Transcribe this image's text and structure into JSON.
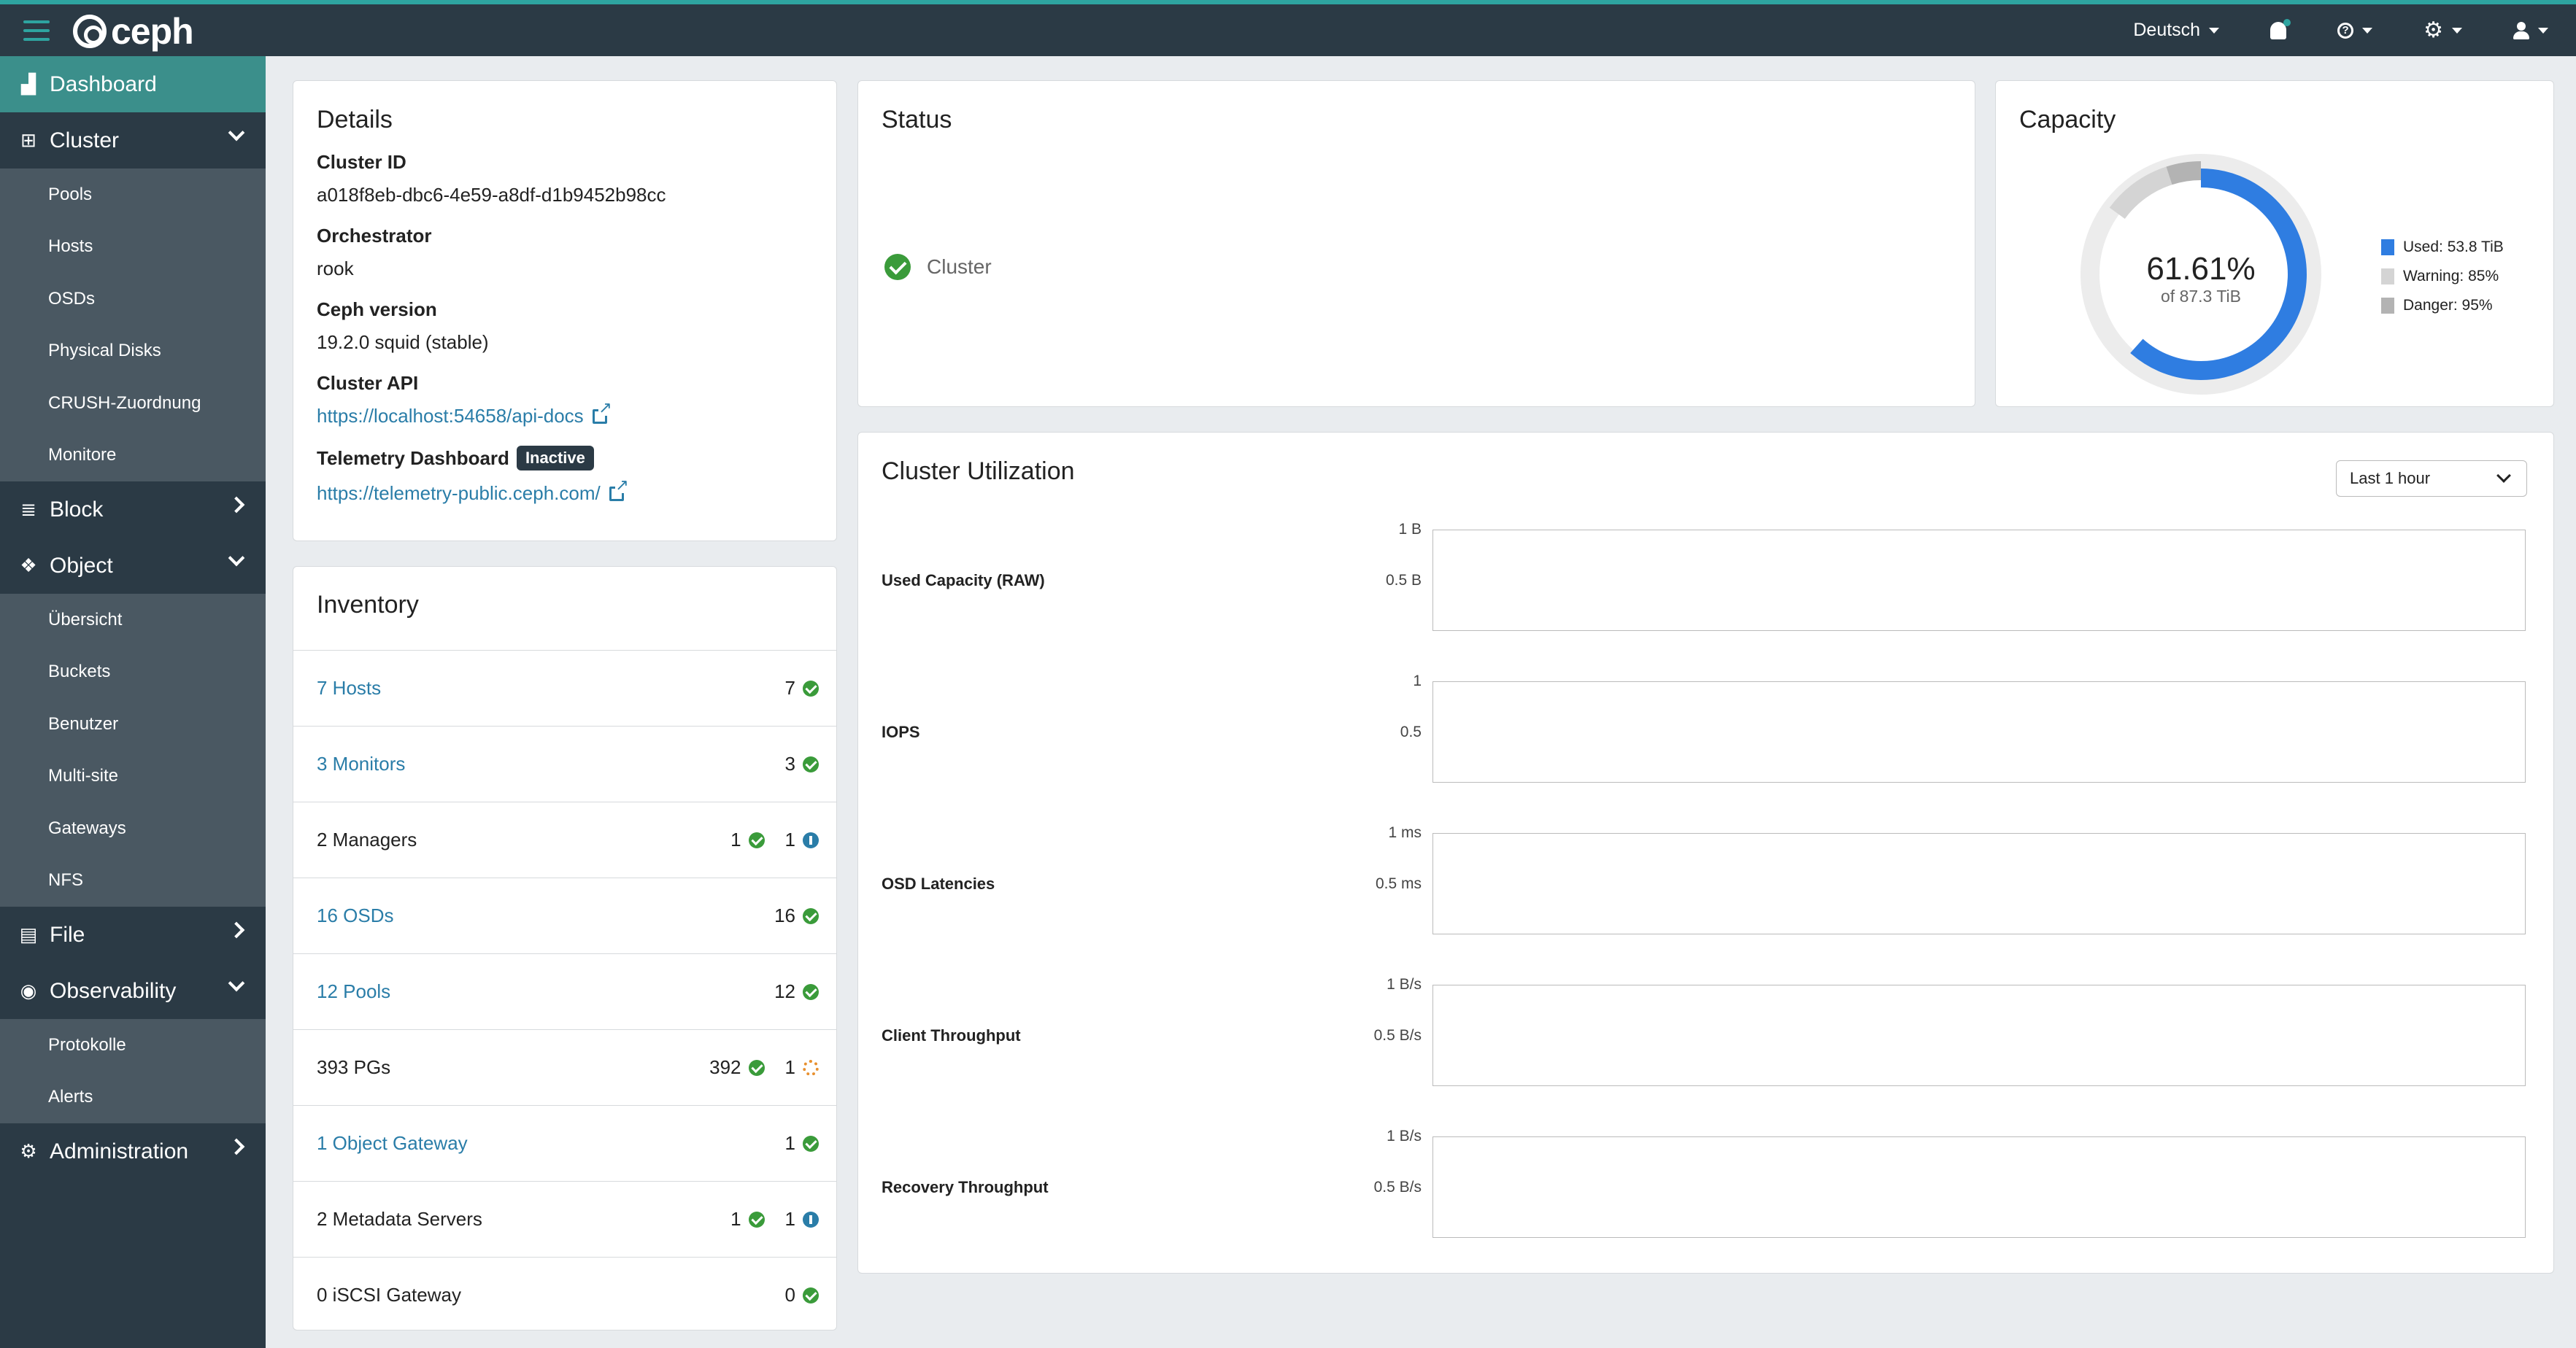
{
  "topbar": {
    "app_name": "ceph",
    "language": "Deutsch"
  },
  "sidebar": {
    "dashboard": "Dashboard",
    "cluster": "Cluster",
    "cluster_items": [
      "Pools",
      "Hosts",
      "OSDs",
      "Physical Disks",
      "CRUSH-Zuordnung",
      "Monitore"
    ],
    "block": "Block",
    "object": "Object",
    "object_items": [
      "Übersicht",
      "Buckets",
      "Benutzer",
      "Multi-site",
      "Gateways",
      "NFS"
    ],
    "file": "File",
    "observability": "Observability",
    "observability_items": [
      "Protokolle",
      "Alerts"
    ],
    "administration": "Administration"
  },
  "details": {
    "title": "Details",
    "cluster_id_label": "Cluster ID",
    "cluster_id": "a018f8eb-dbc6-4e59-a8df-d1b9452b98cc",
    "orchestrator_label": "Orchestrator",
    "orchestrator": "rook",
    "ceph_version_label": "Ceph version",
    "ceph_version": "19.2.0 squid (stable)",
    "cluster_api_label": "Cluster API",
    "cluster_api_url": "https://localhost:54658/api-docs",
    "telemetry_label": "Telemetry Dashboard",
    "telemetry_badge": "Inactive",
    "telemetry_url": "https://telemetry-public.ceph.com/"
  },
  "inventory": {
    "title": "Inventory",
    "rows": [
      {
        "label": "7 Hosts",
        "link": true,
        "counts": [
          "7"
        ],
        "states": [
          "ok"
        ]
      },
      {
        "label": "3 Monitors",
        "link": true,
        "counts": [
          "3"
        ],
        "states": [
          "ok"
        ]
      },
      {
        "label": "2 Managers",
        "link": false,
        "counts": [
          "1",
          "1"
        ],
        "states": [
          "ok",
          "info"
        ]
      },
      {
        "label": "16 OSDs",
        "link": true,
        "counts": [
          "16"
        ],
        "states": [
          "ok"
        ]
      },
      {
        "label": "12 Pools",
        "link": true,
        "counts": [
          "12"
        ],
        "states": [
          "ok"
        ]
      },
      {
        "label": "393 PGs",
        "link": false,
        "counts": [
          "392",
          "1"
        ],
        "states": [
          "ok",
          "spin"
        ]
      },
      {
        "label": "1 Object Gateway",
        "link": true,
        "counts": [
          "1"
        ],
        "states": [
          "ok"
        ]
      },
      {
        "label": "2 Metadata Servers",
        "link": false,
        "counts": [
          "1",
          "1"
        ],
        "states": [
          "ok",
          "info"
        ]
      },
      {
        "label": "0 iSCSI Gateway",
        "link": false,
        "counts": [
          "0"
        ],
        "states": [
          "ok"
        ]
      }
    ]
  },
  "status": {
    "title": "Status",
    "cluster_label": "Cluster"
  },
  "capacity": {
    "title": "Capacity",
    "percent": "61.61%",
    "of_total": "of 87.3 TiB",
    "used_fraction": 0.6161,
    "legend": {
      "used": "Used: 53.8 TiB",
      "warning": "Warning: 85%",
      "danger": "Danger: 95%"
    },
    "colors": {
      "used": "#2f7de1",
      "warning": "#d4d4d4",
      "danger": "#b3b3b3",
      "track": "#ececec"
    }
  },
  "utilization": {
    "title": "Cluster Utilization",
    "range": "Last 1 hour",
    "rows": [
      {
        "label": "Used Capacity (RAW)",
        "ticks": [
          "1 B",
          "0.5 B"
        ]
      },
      {
        "label": "IOPS",
        "ticks": [
          "1",
          "0.5"
        ]
      },
      {
        "label": "OSD Latencies",
        "ticks": [
          "1 ms",
          "0.5 ms"
        ]
      },
      {
        "label": "Client Throughput",
        "ticks": [
          "1 B/s",
          "0.5 B/s"
        ]
      },
      {
        "label": "Recovery Throughput",
        "ticks": [
          "1 B/s",
          "0.5 B/s"
        ]
      }
    ]
  }
}
